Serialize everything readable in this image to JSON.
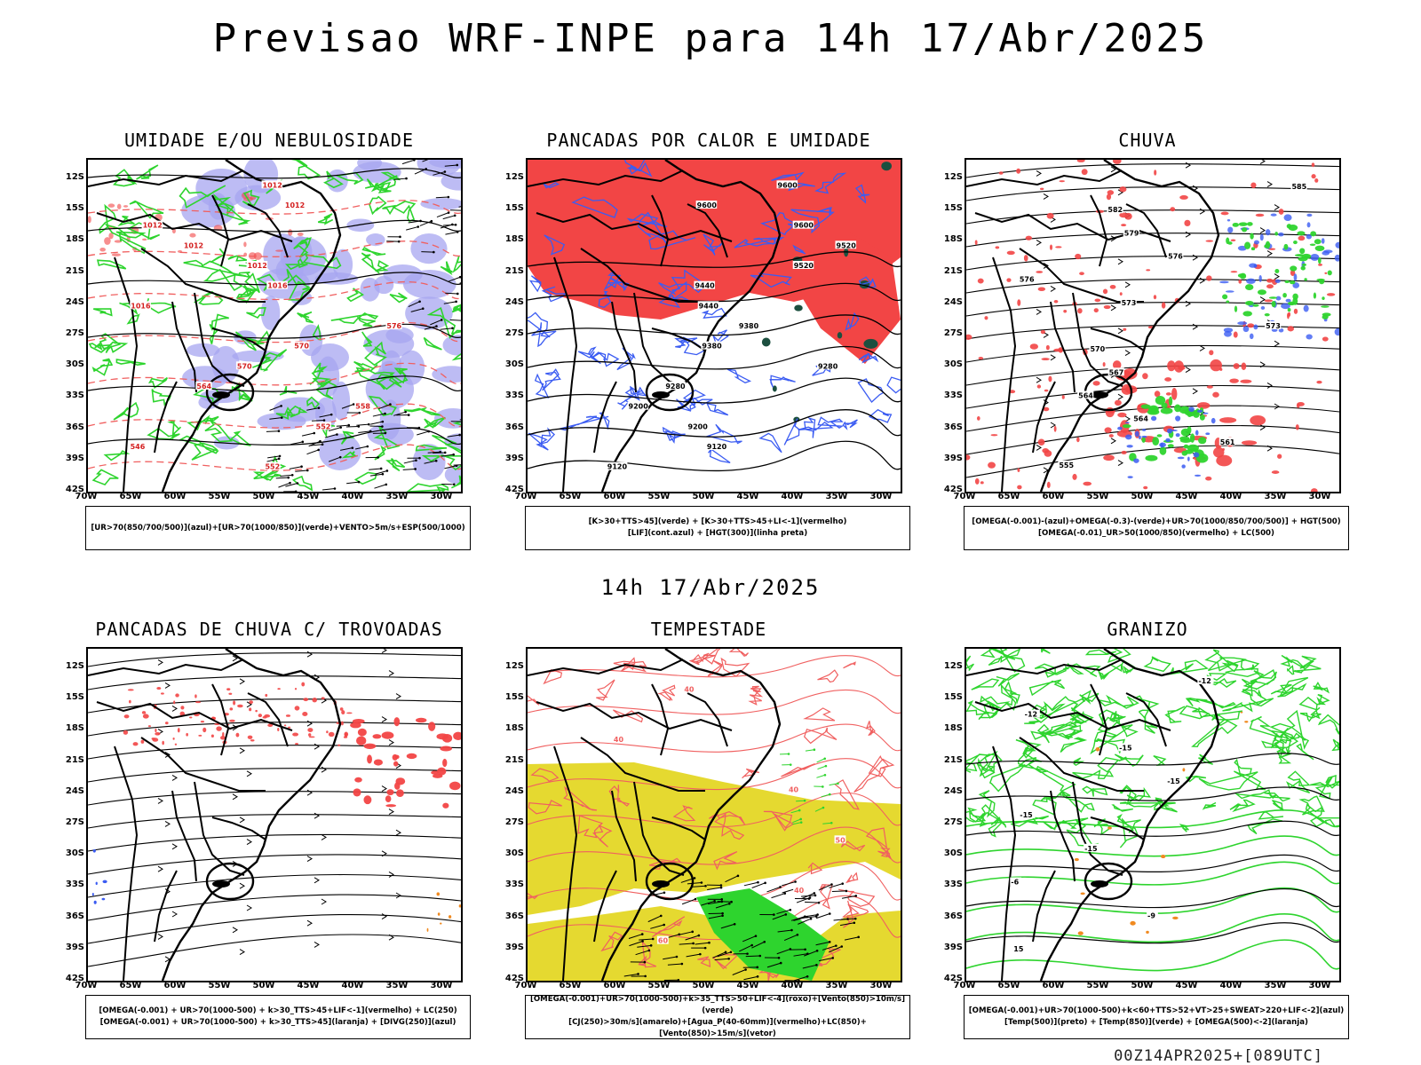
{
  "header": {
    "title": "Previsao WRF-INPE  para 14h 17/Abr/2025",
    "mid_title": "14h 17/Abr/2025",
    "footer": "00Z14APR2025+[089UTC]"
  },
  "axes": {
    "lat_labels": [
      "12S",
      "15S",
      "18S",
      "21S",
      "24S",
      "27S",
      "30S",
      "33S",
      "36S",
      "39S",
      "42S"
    ],
    "lon_labels": [
      "70W",
      "65W",
      "60W",
      "55W",
      "50W",
      "45W",
      "40W",
      "35W",
      "30W"
    ]
  },
  "panels": [
    {
      "title": "UMIDADE E/OU NEBULOSIDADE",
      "legend": [
        "[UR>70(850/700/500)](azul)+[UR>70(1000/850)](verde)+VENTO>5m/s+ESP(500/1000)"
      ],
      "contour_labels": [
        "1012",
        "1012",
        "1012",
        "1012",
        "1012",
        "1016",
        "1016",
        "576",
        "570",
        "570",
        "564",
        "558",
        "552",
        "546",
        "552"
      ]
    },
    {
      "title": "PANCADAS POR CALOR E UMIDADE",
      "legend": [
        "[K>30+TTS>45](verde)  +  [K>30+TTS>45+LI<-1](vermelho)",
        "[LIF](cont.azul)  +  [HGT(300)](linha preta)"
      ],
      "contour_labels": [
        "9600",
        "9600",
        "9600",
        "9520",
        "9520",
        "9440",
        "9440",
        "9380",
        "9380",
        "9280",
        "9280",
        "9200",
        "9200",
        "9120",
        "9120"
      ]
    },
    {
      "title": "CHUVA",
      "legend": [
        "[OMEGA(-0.001)-(azul)+OMEGA(-0.3)-(verde)+UR>70(1000/850/700/500)]  +  HGT(500)",
        "[OMEGA(-0.01)_UR>50(1000/850)(vermelho)  +  LC(500)"
      ],
      "contour_labels": [
        "585",
        "582",
        "579",
        "576",
        "576",
        "573",
        "573",
        "570",
        "567",
        "564",
        "564",
        "561",
        "555"
      ]
    },
    {
      "title": "PANCADAS DE CHUVA C/ TROVOADAS",
      "legend": [
        "[OMEGA(-0.001)  +  UR>70(1000-500)  +  k>30_TTS>45+LIF<-1](vermelho)  +  LC(250)",
        "[OMEGA(-0.001)  +  UR>70(1000-500)  +  k>30_TTS>45](laranja)  +  [DIVG(250)](azul)"
      ],
      "contour_labels": []
    },
    {
      "title": "TEMPESTADE",
      "legend": [
        "[OMEGA(-0.001)+UR>70(1000-500)+k>35_TTS>50+LIF<-4](roxo)+[Vento(850)>10m/s](verde)",
        "[CJ(250)>30m/s](amarelo)+[Agua_P(40-60mm)](vermelho)+LC(850)+[Vento(850)>15m/s](vetor)"
      ],
      "contour_labels": [
        "40",
        "40",
        "40",
        "50",
        "40",
        "60"
      ]
    },
    {
      "title": "GRANIZO",
      "legend": [
        "[OMEGA(-0.001)+UR>70(1000-500)+k<60+TTS>52+VT>25+SWEAT>220+LIF<-2](azul)",
        "[Temp(500)](preto)  +  [Temp(850)](verde)  +  [OMEGA(500)<-2](laranja)"
      ],
      "contour_labels": [
        "-12",
        "-12",
        "-15",
        "-15",
        "-15",
        "-15",
        "-6",
        "-9",
        "15"
      ]
    }
  ],
  "colors": {
    "blue_fill": "#a7a6f0",
    "green": "#2ed42e",
    "red": "#f24545",
    "red_line": "#f06060",
    "blue_line": "#3b5cf2",
    "yellow": "#e5d930",
    "dark_green": "#1c4f3f",
    "orange": "#f08a20"
  }
}
